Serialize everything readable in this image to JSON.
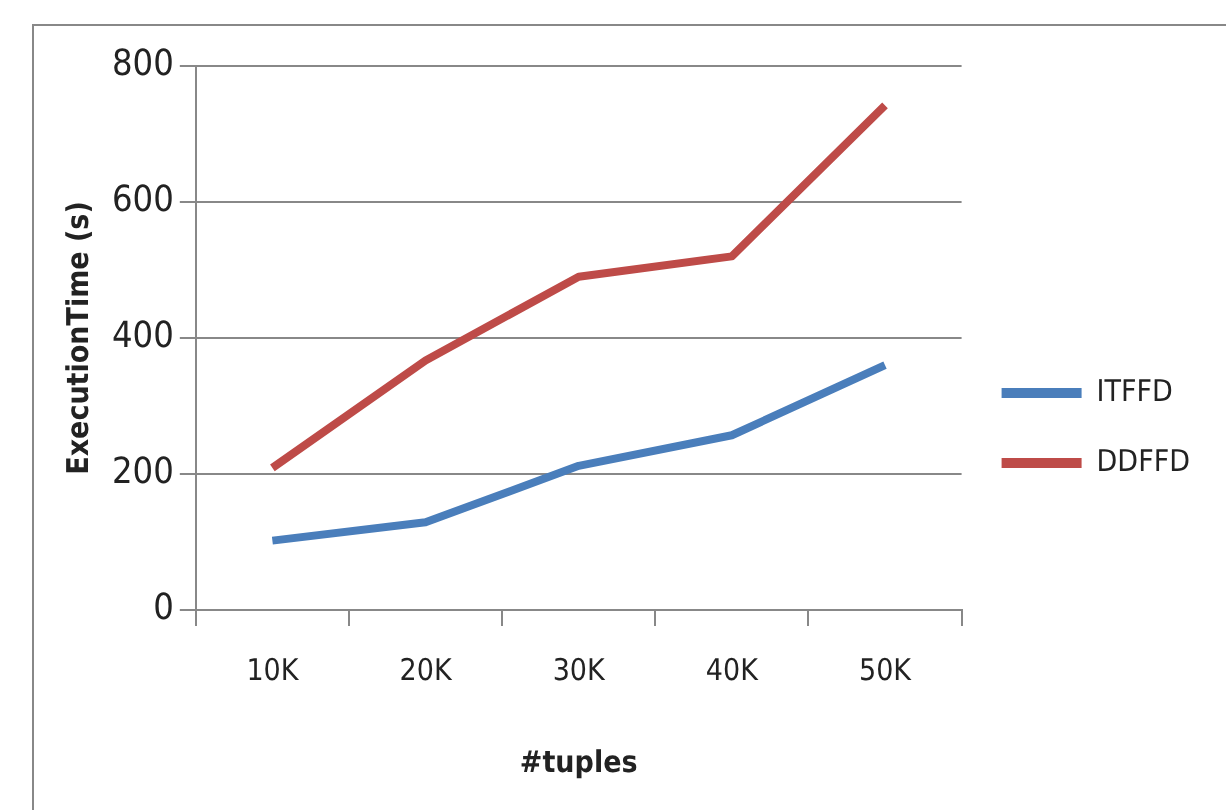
{
  "chart_data": {
    "type": "line",
    "xlabel": "#tuples",
    "ylabel": "ExecutionTime (s)",
    "categories": [
      "10K",
      "20K",
      "30K",
      "40K",
      "50K"
    ],
    "series": [
      {
        "name": "ITFFD",
        "color": "#4a7ebb",
        "values": [
          102,
          129,
          212,
          257,
          360
        ]
      },
      {
        "name": "DDFFD",
        "color": "#be4b48",
        "values": [
          209,
          367,
          490,
          520,
          742
        ]
      }
    ],
    "ylim": [
      0,
      800
    ],
    "yticks": [
      0,
      200,
      400,
      600,
      800
    ],
    "grid": "y",
    "legend": "right",
    "marker": "none"
  }
}
